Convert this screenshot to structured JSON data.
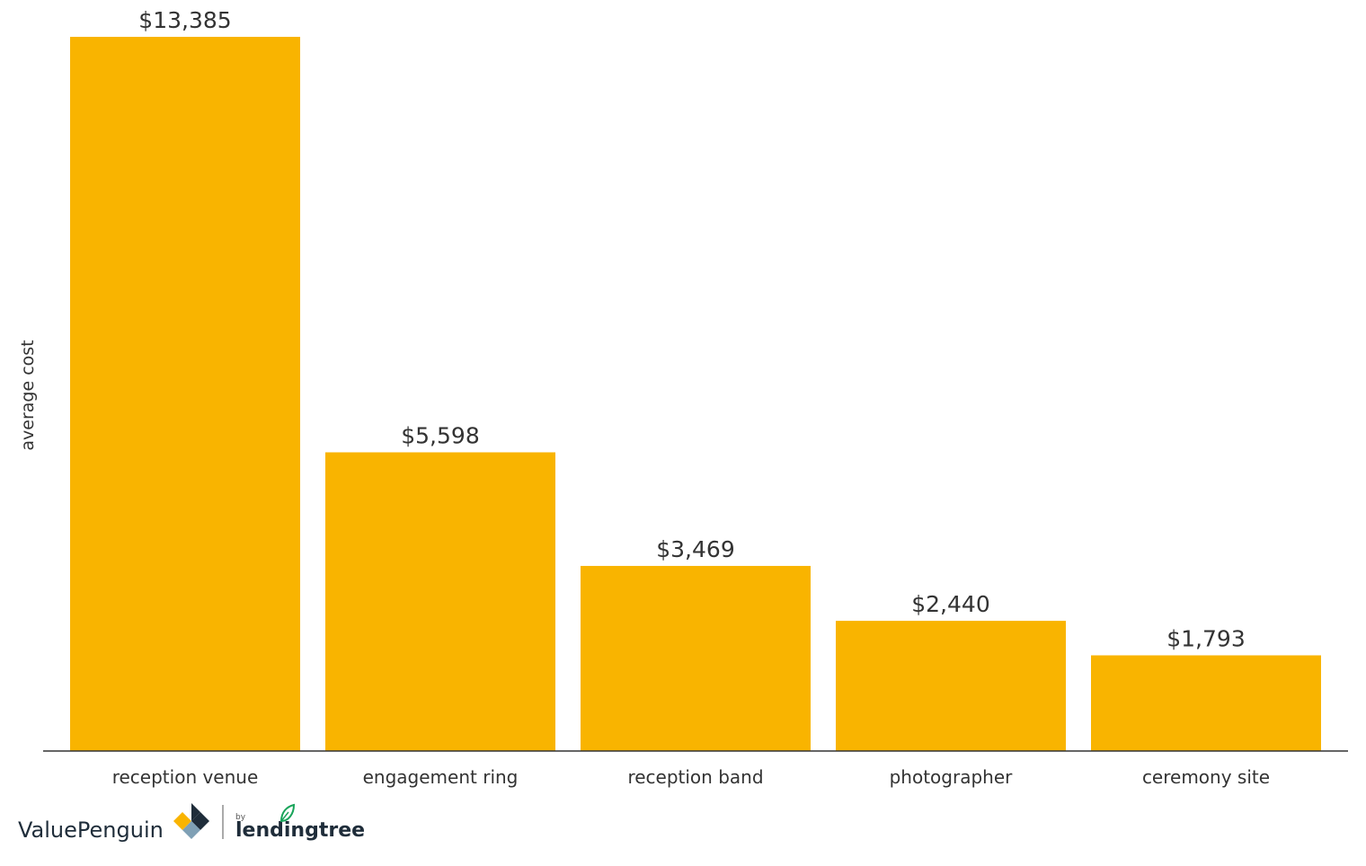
{
  "colors": {
    "bar": "#F9B400",
    "axis": "#333333",
    "text": "#333333",
    "logo_dark": "#1f2d3a",
    "logo_gold": "#F9B400",
    "logo_green": "#19a45a"
  },
  "chart_data": {
    "type": "bar",
    "ylabel": "average cost",
    "categories": [
      "reception venue",
      "engagement ring",
      "reception band",
      "photographer",
      "ceremony site"
    ],
    "values": [
      13385,
      5598,
      3469,
      2440,
      1793
    ],
    "value_labels": [
      "$13,385",
      "$5,598",
      "$3,469",
      "$2,440",
      "$1,793"
    ],
    "ylim": [
      0,
      13385
    ],
    "grid": false,
    "legend": "none"
  },
  "branding": {
    "brand_name": "ValuePenguin",
    "by_text": "by",
    "partner_name": "lendingtree",
    "icons": [
      "penguin-logo-icon",
      "leaf-icon"
    ]
  }
}
